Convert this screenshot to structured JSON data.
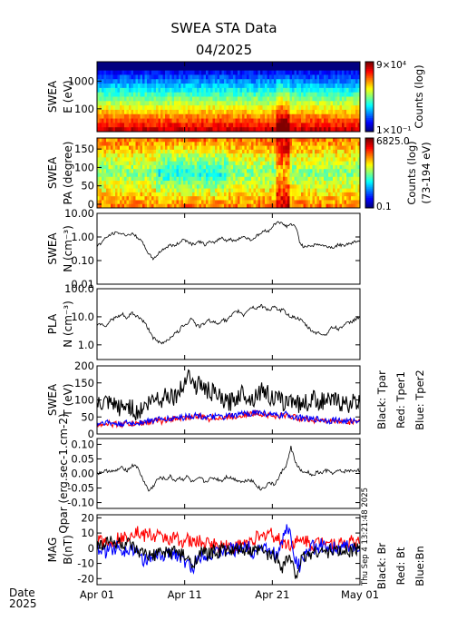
{
  "header": {
    "title": "SWEA STA Data",
    "subtitle": "04/2025"
  },
  "timestamp": "Thu Sep  4 13:21:48 2025",
  "date_label": [
    "Date",
    "2025"
  ],
  "x_axis": {
    "ticks": [
      "Apr 01",
      "Apr 11",
      "Apr 21",
      "May 01"
    ],
    "tick_days": [
      0,
      10,
      20,
      30
    ],
    "range_days": [
      0,
      30
    ]
  },
  "chart_data": [
    {
      "id": "energy",
      "type": "heatmap",
      "ylabel": [
        "SWEA",
        "E (eV)"
      ],
      "yscale": "log",
      "yticks": [
        "1000",
        "100"
      ],
      "colorbar": {
        "max": "9×10⁴",
        "min": "1×10⁻¹",
        "label": [
          "Counts (log)"
        ]
      }
    },
    {
      "id": "pitch",
      "type": "heatmap",
      "ylabel": [
        "SWEA",
        "PA (degree)"
      ],
      "yticks": [
        "150",
        "100",
        "50",
        "0"
      ],
      "ylim": [
        -10,
        180
      ],
      "colorbar": {
        "max": "6825.0",
        "min": "0.1",
        "label": [
          "Counts (log)",
          "(73-194 eV)"
        ]
      }
    },
    {
      "id": "density",
      "type": "line",
      "ylabel": [
        "SWEA",
        "N (cm⁻³)"
      ],
      "yscale": "log",
      "ylim": [
        0.01,
        10
      ],
      "yticks": [
        "10.00",
        "1.00",
        "0.10",
        "0.01"
      ],
      "series": [
        {
          "color": "#000000",
          "values": [
            0.42,
            0.55,
            0.9,
            1.2,
            1.45,
            1.5,
            1.3,
            1.2,
            1.35,
            1.1,
            0.75,
            0.4,
            0.18,
            0.12,
            0.17,
            0.28,
            0.35,
            0.45,
            0.42,
            0.55,
            0.8,
            0.65,
            0.5,
            0.55,
            0.65,
            0.45,
            0.6,
            0.55,
            0.75,
            0.95,
            0.7,
            0.8,
            0.65,
            0.9,
            1.05,
            0.85,
            0.75,
            1.1,
            1.4,
            1.9,
            1.8,
            3.2,
            4.6,
            3.5,
            2.8,
            3.5,
            2.6,
            0.6,
            0.35,
            0.45,
            0.42,
            0.5,
            0.45,
            0.4,
            0.38,
            0.35,
            0.48,
            0.42,
            0.5,
            0.55,
            0.65,
            0.72
          ]
        }
      ]
    },
    {
      "id": "pla",
      "type": "line",
      "ylabel": [
        "PLA",
        "N (cm⁻³)"
      ],
      "yscale": "log",
      "ylim": [
        0.3,
        100
      ],
      "yticks": [
        "100.0",
        "10.0",
        "1.0"
      ],
      "series": [
        {
          "color": "#000000",
          "values": [
            5,
            6,
            4.5,
            7,
            9,
            10,
            12,
            8,
            14,
            11,
            9,
            6,
            3.5,
            1.8,
            1.3,
            1.1,
            1.4,
            1.8,
            2.5,
            3,
            5,
            6,
            9,
            5,
            4.5,
            6,
            7.5,
            6.5,
            5.5,
            8,
            7,
            10,
            14,
            16,
            11,
            18,
            22,
            20,
            25,
            21,
            17,
            23,
            16,
            18,
            13,
            10,
            9.5,
            8,
            6,
            4,
            3,
            2.7,
            2.5,
            2.2,
            3.5,
            4.5,
            3.5,
            4.8,
            5.8,
            6.5,
            8.5,
            10
          ]
        }
      ]
    },
    {
      "id": "temperature",
      "type": "line",
      "ylabel": [
        "SWEA",
        "T (eV)"
      ],
      "ylim": [
        0,
        200
      ],
      "yticks": [
        "200",
        "150",
        "100",
        "50",
        "0"
      ],
      "legend": [
        "Black: Tpar",
        "Red: Tper1",
        "Blue: Tper2"
      ],
      "series": [
        {
          "color": "#000000",
          "values": [
            80,
            85,
            90,
            85,
            82,
            78,
            75,
            85,
            80,
            60,
            70,
            80,
            90,
            100,
            110,
            100,
            120,
            115,
            110,
            125,
            135,
            195,
            150,
            140,
            150,
            130,
            125,
            120,
            110,
            100,
            90,
            95,
            105,
            115,
            125,
            110,
            100,
            120,
            125,
            130,
            110,
            105,
            100,
            95,
            90,
            105,
            100,
            85,
            95,
            90,
            105,
            100,
            95,
            100,
            90,
            100,
            95,
            90,
            85,
            95,
            90,
            88
          ]
        },
        {
          "color": "#ff0000",
          "values": [
            28,
            30,
            32,
            30,
            28,
            30,
            28,
            30,
            30,
            29,
            32,
            33,
            34,
            36,
            40,
            38,
            42,
            40,
            45,
            48,
            45,
            50,
            50,
            52,
            50,
            48,
            45,
            48,
            50,
            46,
            48,
            52,
            50,
            55,
            58,
            56,
            60,
            62,
            60,
            58,
            55,
            52,
            50,
            54,
            56,
            52,
            48,
            46,
            45,
            42,
            40,
            42,
            40,
            38,
            36,
            40,
            38,
            36,
            35,
            36,
            38,
            40
          ]
        },
        {
          "color": "#0000ff",
          "values": [
            30,
            32,
            35,
            32,
            30,
            28,
            30,
            32,
            30,
            32,
            35,
            36,
            38,
            40,
            44,
            40,
            46,
            42,
            48,
            50,
            48,
            55,
            52,
            55,
            52,
            50,
            48,
            50,
            52,
            48,
            50,
            55,
            52,
            58,
            60,
            58,
            62,
            65,
            62,
            60,
            58,
            55,
            52,
            56,
            58,
            54,
            50,
            48,
            46,
            44,
            42,
            44,
            42,
            40,
            38,
            42,
            40,
            38,
            36,
            38,
            40,
            42
          ]
        }
      ]
    },
    {
      "id": "qpar",
      "type": "line",
      "ylabel": [
        "Qpar (erg.sec-1.cm-2)"
      ],
      "ylim": [
        -0.12,
        0.12
      ],
      "yticks": [
        "0.10",
        "0.05",
        "0.00",
        "-0.05",
        "-0.10"
      ],
      "series": [
        {
          "color": "#000000",
          "values": [
            0,
            0.005,
            0.008,
            0.01,
            0.005,
            0.015,
            0.02,
            0.01,
            0.025,
            0.03,
            0,
            -0.03,
            -0.06,
            -0.045,
            -0.02,
            -0.015,
            -0.02,
            -0.01,
            -0.025,
            -0.015,
            -0.02,
            -0.01,
            -0.03,
            -0.025,
            -0.015,
            -0.03,
            -0.02,
            -0.015,
            -0.02,
            -0.025,
            -0.01,
            -0.015,
            -0.02,
            -0.025,
            -0.03,
            -0.02,
            -0.025,
            -0.04,
            -0.055,
            -0.045,
            -0.03,
            -0.04,
            -0.02,
            0.01,
            0.03,
            0.09,
            0.04,
            0.015,
            0,
            0.005,
            -0.01,
            0.005,
            0,
            0.01,
            0.005,
            0,
            0.01,
            0.005,
            0.01,
            0.008,
            0.012,
            0.01
          ]
        }
      ]
    },
    {
      "id": "mag",
      "type": "line",
      "ylabel": [
        "MAG",
        "B(nT)"
      ],
      "ylim": [
        -24,
        22
      ],
      "yticks": [
        "20",
        "10",
        "0",
        "-10",
        "-20"
      ],
      "legend": [
        "Black: Br",
        "Red: Bt",
        "Blue:Bn"
      ],
      "series": [
        {
          "color": "#ff0000",
          "values": [
            5,
            4,
            6,
            3,
            5,
            7,
            6,
            8,
            10,
            12,
            9,
            8,
            10,
            7,
            9,
            6,
            8,
            5,
            7,
            6,
            4,
            6,
            3,
            5,
            4,
            2,
            4,
            3,
            1,
            2,
            3,
            1,
            0,
            2,
            4,
            3,
            5,
            7,
            6,
            9,
            11,
            8,
            6,
            4,
            3,
            2,
            5,
            3,
            6,
            4,
            2,
            3,
            5,
            6,
            4,
            3,
            2,
            4,
            3,
            5,
            4,
            3
          ]
        },
        {
          "color": "#0000ff",
          "values": [
            -2,
            0,
            -3,
            1,
            -1,
            2,
            -2,
            0,
            1,
            -3,
            -5,
            -8,
            -6,
            -9,
            -4,
            -7,
            -3,
            -5,
            -2,
            -6,
            -8,
            -10,
            -14,
            -8,
            -5,
            -3,
            -6,
            -2,
            -4,
            -1,
            -3,
            0,
            -2,
            1,
            -1,
            2,
            -3,
            -1,
            2,
            0,
            -4,
            -2,
            -6,
            5,
            14,
            8,
            -8,
            -12,
            -4,
            -2,
            1,
            -1,
            2,
            0,
            -2,
            1,
            -1,
            0,
            2,
            -1,
            1,
            0
          ]
        },
        {
          "color": "#000000",
          "values": [
            3,
            2,
            4,
            5,
            3,
            4,
            2,
            3,
            1,
            -2,
            -4,
            -3,
            -6,
            -5,
            -3,
            -4,
            -2,
            -3,
            -1,
            -4,
            -5,
            -7,
            -12,
            -6,
            -4,
            -3,
            -4,
            -2,
            -3,
            -1,
            -2,
            -1,
            -3,
            0,
            -2,
            -1,
            -3,
            -2,
            -1,
            -3,
            -5,
            -4,
            -8,
            -12,
            -6,
            -8,
            -18,
            -10,
            -6,
            -4,
            -3,
            -2,
            -1,
            -3,
            -2,
            -1,
            -2,
            -3,
            -1,
            -2,
            0,
            -1
          ]
        }
      ]
    }
  ]
}
